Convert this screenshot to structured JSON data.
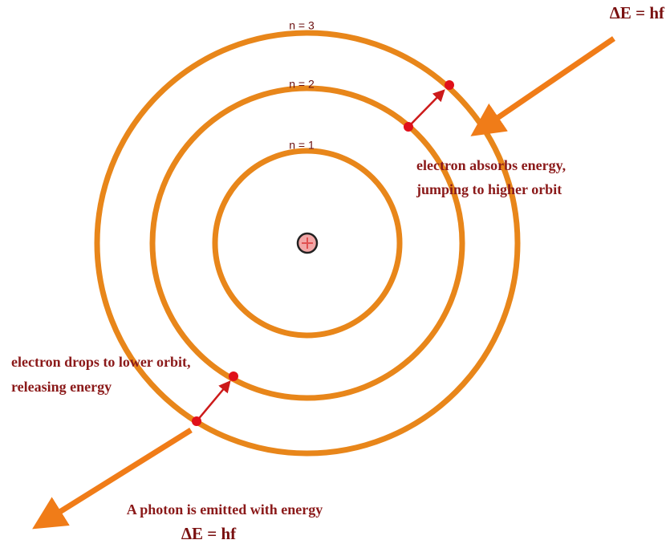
{
  "orbits": [
    "n = 1",
    "n = 2",
    "n = 3"
  ],
  "absorption": {
    "energy": "ΔE = hf",
    "caption": [
      "electron absorbs energy,",
      "jumping to higher orbit"
    ]
  },
  "emission": {
    "caption": [
      "electron drops to lower orbit,",
      "releasing energy"
    ],
    "photon": "A photon is emitted with energy",
    "energy": "ΔE = hf"
  }
}
